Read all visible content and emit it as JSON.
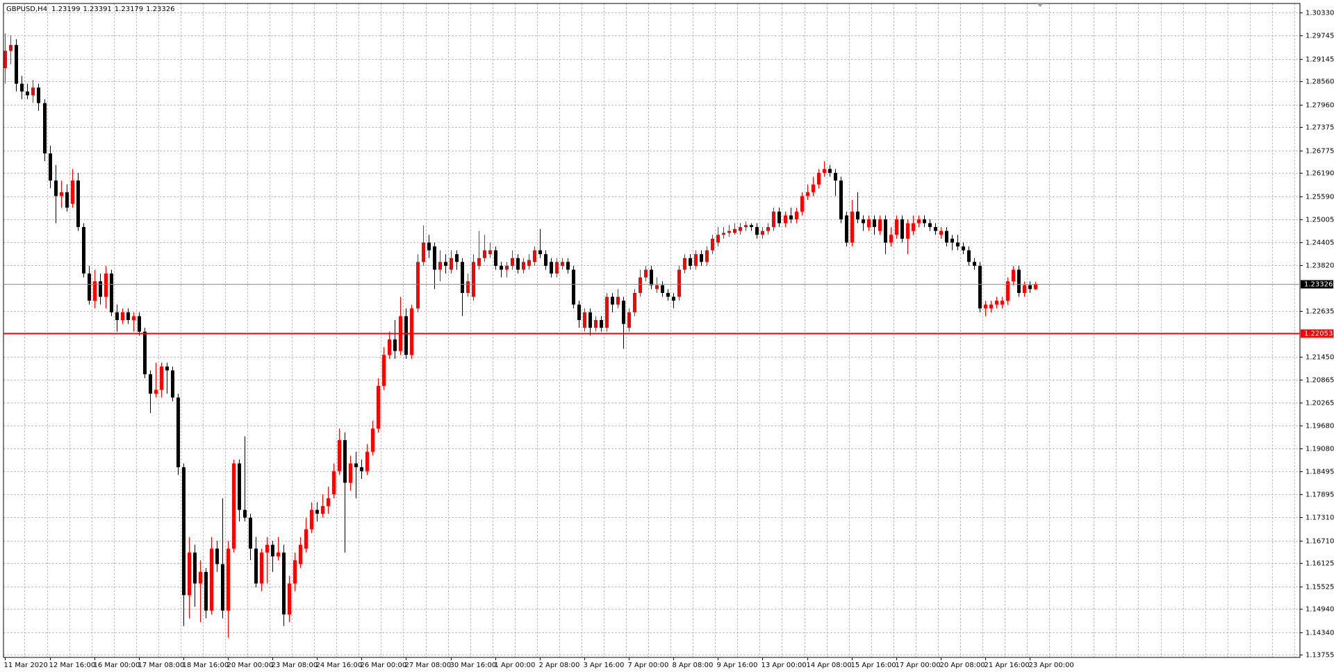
{
  "chart_data": {
    "type": "candlestick",
    "symbol": "GBPUSD,H4",
    "categories": [
      "11 Mar 2020",
      null,
      null,
      null,
      null,
      null,
      null,
      null,
      "12 Mar 16:00",
      null,
      null,
      null,
      null,
      null,
      null,
      null,
      "16 Mar 00:00",
      null,
      null,
      null,
      null,
      null,
      null,
      null,
      "17 Mar 08:00",
      null,
      null,
      null,
      null,
      null,
      null,
      null,
      "18 Mar 16:00",
      null,
      null,
      null,
      null,
      null,
      null,
      null,
      "20 Mar 00:00",
      null,
      null,
      null,
      null,
      null,
      null,
      null,
      "23 Mar 08:00",
      null,
      null,
      null,
      null,
      null,
      null,
      null,
      "24 Mar 16:00",
      null,
      null,
      null,
      null,
      null,
      null,
      null,
      "26 Mar 00:00",
      null,
      null,
      null,
      null,
      null,
      null,
      null,
      "27 Mar 08:00",
      null,
      null,
      null,
      null,
      null,
      null,
      null,
      "30 Mar 16:00",
      null,
      null,
      null,
      null,
      null,
      null,
      null,
      "1 Apr 00:00",
      null,
      null,
      null,
      null,
      null,
      null,
      null,
      "2 Apr 08:00",
      null,
      null,
      null,
      null,
      null,
      null,
      null,
      "3 Apr 16:00",
      null,
      null,
      null,
      null,
      null,
      null,
      null,
      "7 Apr 00:00",
      null,
      null,
      null,
      null,
      null,
      null,
      null,
      "8 Apr 08:00",
      null,
      null,
      null,
      null,
      null,
      null,
      null,
      "9 Apr 16:00",
      null,
      null,
      null,
      null,
      null,
      null,
      null,
      "13 Apr 00:00",
      null,
      null,
      null,
      null,
      null,
      null,
      null,
      "14 Apr 08:00",
      null,
      null,
      null,
      null,
      null,
      null,
      null,
      "15 Apr 16:00",
      null,
      null,
      null,
      null,
      null,
      null,
      null,
      "17 Apr 00:00",
      null,
      null,
      null,
      null,
      null,
      null,
      null,
      "20 Apr 08:00",
      null,
      null,
      null,
      null,
      null,
      null,
      null,
      "21 Apr 16:00",
      null,
      null,
      null,
      null,
      null,
      null,
      null,
      "23 Apr 00:00",
      null
    ],
    "open": [
      1.289,
      1.2935,
      1.295,
      1.285,
      1.283,
      1.282,
      1.284,
      1.28,
      1.267,
      1.26,
      1.256,
      1.257,
      1.254,
      1.26,
      1.248,
      1.236,
      1.229,
      1.234,
      1.23,
      1.236,
      1.226,
      1.224,
      1.226,
      1.224,
      1.225,
      1.221,
      1.21,
      1.205,
      1.206,
      1.212,
      1.211,
      1.204,
      1.186,
      1.153,
      1.164,
      1.156,
      1.159,
      1.149,
      1.165,
      1.161,
      1.149,
      1.165,
      1.187,
      1.175,
      1.173,
      1.165,
      1.156,
      1.164,
      1.166,
      1.163,
      1.164,
      1.148,
      1.156,
      1.161,
      1.165,
      1.17,
      1.175,
      1.174,
      1.176,
      1.179,
      1.185,
      1.193,
      1.182,
      1.187,
      1.186,
      1.185,
      1.19,
      1.196,
      1.207,
      1.215,
      1.219,
      1.216,
      1.225,
      1.215,
      1.227,
      1.239,
      1.244,
      1.243,
      1.237,
      1.239,
      1.237,
      1.241,
      1.239,
      1.231,
      1.23,
      1.238,
      1.24,
      1.241,
      1.242,
      1.238,
      1.237,
      1.238,
      1.24,
      1.237,
      1.238,
      1.239,
      1.242,
      1.241,
      1.239,
      1.236,
      1.238,
      1.239,
      1.237,
      1.228,
      1.222,
      1.226,
      1.222,
      1.224,
      1.222,
      1.23,
      1.228,
      1.229,
      1.222,
      1.226,
      1.231,
      1.235,
      1.237,
      1.232,
      1.233,
      1.231,
      1.23,
      1.23,
      1.237,
      1.24,
      1.238,
      1.241,
      1.239,
      1.242,
      1.244,
      1.246,
      1.2465,
      1.2465,
      1.247,
      1.248,
      1.2485,
      1.248,
      1.246,
      1.247,
      1.248,
      1.252,
      1.249,
      1.251,
      1.25,
      1.252,
      1.256,
      1.257,
      1.259,
      1.262,
      1.263,
      1.262,
      1.26,
      1.251,
      1.244,
      1.252,
      1.25,
      1.248,
      1.25,
      1.247,
      1.25,
      1.244,
      1.246,
      1.25,
      1.245,
      1.247,
      1.249,
      1.25,
      1.249,
      1.248,
      1.246,
      1.247,
      1.245,
      1.244,
      1.243,
      1.242,
      1.239,
      1.238,
      1.227,
      1.227,
      1.228,
      1.228,
      1.229,
      1.234,
      1.237,
      1.231,
      1.233,
      1.23199
    ],
    "high": [
      1.298,
      1.2975,
      1.2965,
      1.287,
      1.285,
      1.286,
      1.285,
      1.281,
      1.269,
      1.264,
      1.26,
      1.259,
      1.263,
      1.262,
      1.249,
      1.238,
      1.237,
      1.236,
      1.238,
      1.237,
      1.228,
      1.227,
      1.227,
      1.226,
      1.226,
      1.222,
      1.211,
      1.213,
      1.213,
      1.213,
      1.212,
      1.205,
      1.187,
      1.168,
      1.166,
      1.162,
      1.16,
      1.168,
      1.167,
      1.178,
      1.167,
      1.188,
      1.188,
      1.194,
      1.174,
      1.168,
      1.165,
      1.168,
      1.167,
      1.168,
      1.166,
      1.158,
      1.164,
      1.168,
      1.173,
      1.177,
      1.177,
      1.179,
      1.181,
      1.187,
      1.196,
      1.195,
      1.189,
      1.19,
      1.188,
      1.192,
      1.198,
      1.209,
      1.217,
      1.221,
      1.224,
      1.23,
      1.227,
      1.228,
      1.241,
      1.2484,
      1.246,
      1.244,
      1.242,
      1.241,
      1.242,
      1.242,
      1.24,
      1.236,
      1.241,
      1.247,
      1.246,
      1.244,
      1.243,
      1.239,
      1.239,
      1.242,
      1.241,
      1.24,
      1.241,
      1.243,
      1.2475,
      1.242,
      1.24,
      1.24,
      1.24,
      1.24,
      1.238,
      1.229,
      1.227,
      1.227,
      1.225,
      1.225,
      1.231,
      1.231,
      1.232,
      1.23,
      1.227,
      1.232,
      1.237,
      1.238,
      1.238,
      1.235,
      1.234,
      1.232,
      1.231,
      1.238,
      1.241,
      1.241,
      1.242,
      1.242,
      1.243,
      1.246,
      1.248,
      1.248,
      1.2485,
      1.249,
      1.249,
      1.2495,
      1.249,
      1.249,
      1.248,
      1.249,
      1.253,
      1.253,
      1.252,
      1.253,
      1.253,
      1.257,
      1.259,
      1.261,
      1.263,
      1.265,
      1.264,
      1.263,
      1.261,
      1.252,
      1.255,
      1.257,
      1.251,
      1.251,
      1.251,
      1.251,
      1.251,
      1.248,
      1.251,
      1.251,
      1.25,
      1.251,
      1.251,
      1.251,
      1.25,
      1.249,
      1.248,
      1.248,
      1.246,
      1.246,
      1.244,
      1.243,
      1.24,
      1.239,
      1.229,
      1.229,
      1.23,
      1.23,
      1.235,
      1.238,
      1.238,
      1.234,
      1.234,
      1.23391
    ],
    "low": [
      1.285,
      1.29,
      1.283,
      1.281,
      1.281,
      1.28,
      1.278,
      1.265,
      1.258,
      1.249,
      1.253,
      1.252,
      1.253,
      1.247,
      1.235,
      1.228,
      1.227,
      1.228,
      1.227,
      1.225,
      1.221,
      1.223,
      1.223,
      1.221,
      1.22,
      1.209,
      1.2,
      1.204,
      1.204,
      1.205,
      1.203,
      1.184,
      1.145,
      1.147,
      1.15,
      1.146,
      1.147,
      1.148,
      1.159,
      1.147,
      1.142,
      1.164,
      1.172,
      1.172,
      1.162,
      1.155,
      1.154,
      1.156,
      1.159,
      1.162,
      1.145,
      1.146,
      1.154,
      1.16,
      1.164,
      1.169,
      1.172,
      1.173,
      1.174,
      1.178,
      1.184,
      1.164,
      1.18,
      1.178,
      1.183,
      1.184,
      1.189,
      1.195,
      1.206,
      1.214,
      1.214,
      1.215,
      1.214,
      1.214,
      1.226,
      1.238,
      1.24,
      1.232,
      1.234,
      1.236,
      1.236,
      1.237,
      1.225,
      1.23,
      1.229,
      1.237,
      1.239,
      1.24,
      1.237,
      1.235,
      1.235,
      1.237,
      1.236,
      1.236,
      1.237,
      1.238,
      1.24,
      1.237,
      1.235,
      1.235,
      1.237,
      1.236,
      1.227,
      1.222,
      1.221,
      1.22,
      1.221,
      1.221,
      1.221,
      1.226,
      1.227,
      1.2166,
      1.221,
      1.225,
      1.23,
      1.234,
      1.232,
      1.231,
      1.23,
      1.229,
      1.227,
      1.229,
      1.236,
      1.237,
      1.237,
      1.238,
      1.238,
      1.241,
      1.243,
      1.245,
      1.2455,
      1.246,
      1.246,
      1.247,
      1.247,
      1.245,
      1.245,
      1.246,
      1.247,
      1.248,
      1.248,
      1.249,
      1.249,
      1.251,
      1.255,
      1.256,
      1.258,
      1.261,
      1.261,
      1.256,
      1.249,
      1.243,
      1.243,
      1.249,
      1.247,
      1.247,
      1.246,
      1.246,
      1.241,
      1.243,
      1.245,
      1.244,
      1.241,
      1.246,
      1.248,
      1.248,
      1.247,
      1.246,
      1.245,
      1.243,
      1.242,
      1.242,
      1.241,
      1.238,
      1.237,
      1.226,
      1.225,
      1.226,
      1.227,
      1.227,
      1.228,
      1.233,
      1.23,
      1.23,
      1.231,
      1.23179
    ],
    "close": [
      1.2935,
      1.295,
      1.285,
      1.283,
      1.282,
      1.284,
      1.28,
      1.267,
      1.26,
      1.256,
      1.257,
      1.253,
      1.26,
      1.248,
      1.236,
      1.229,
      1.234,
      1.23,
      1.236,
      1.226,
      1.224,
      1.226,
      1.224,
      1.225,
      1.221,
      1.21,
      1.205,
      1.206,
      1.212,
      1.211,
      1.204,
      1.186,
      1.153,
      1.164,
      1.156,
      1.159,
      1.149,
      1.165,
      1.161,
      1.149,
      1.165,
      1.187,
      1.175,
      1.173,
      1.165,
      1.156,
      1.164,
      1.166,
      1.163,
      1.164,
      1.148,
      1.156,
      1.162,
      1.166,
      1.17,
      1.175,
      1.174,
      1.176,
      1.178,
      1.185,
      1.193,
      1.182,
      1.187,
      1.186,
      1.185,
      1.19,
      1.196,
      1.207,
      1.215,
      1.219,
      1.216,
      1.225,
      1.215,
      1.227,
      1.239,
      1.244,
      1.242,
      1.237,
      1.239,
      1.238,
      1.24,
      1.239,
      1.231,
      1.234,
      1.239,
      1.24,
      1.242,
      1.242,
      1.238,
      1.237,
      1.238,
      1.24,
      1.237,
      1.239,
      1.2395,
      1.242,
      1.241,
      1.238,
      1.236,
      1.239,
      1.239,
      1.237,
      1.228,
      1.224,
      1.226,
      1.222,
      1.224,
      1.222,
      1.23,
      1.228,
      1.23,
      1.223,
      1.226,
      1.231,
      1.235,
      1.237,
      1.233,
      1.233,
      1.231,
      1.23,
      1.229,
      1.237,
      1.24,
      1.238,
      1.241,
      1.239,
      1.242,
      1.245,
      1.246,
      1.2465,
      1.247,
      1.2475,
      1.248,
      1.2485,
      1.248,
      1.246,
      1.247,
      1.248,
      1.252,
      1.249,
      1.251,
      1.25,
      1.252,
      1.256,
      1.257,
      1.259,
      1.262,
      1.263,
      1.262,
      1.26,
      1.25,
      1.244,
      1.252,
      1.25,
      1.249,
      1.25,
      1.248,
      1.25,
      1.244,
      1.246,
      1.25,
      1.245,
      1.249,
      1.249,
      1.25,
      1.249,
      1.248,
      1.247,
      1.247,
      1.244,
      1.244,
      1.243,
      1.242,
      1.239,
      1.238,
      1.227,
      1.228,
      1.228,
      1.229,
      1.229,
      1.234,
      1.237,
      1.231,
      1.233,
      1.232,
      1.23326
    ],
    "up_color": "#ff0000",
    "down_color": "#000000",
    "ylim": [
      1.13692,
      1.30571
    ],
    "yticks": [
      {
        "value": 1.3033,
        "label": "1.30330"
      },
      1.29745,
      1.29145,
      {
        "value": 1.2856,
        "label": "1.28560"
      },
      {
        "value": 1.2796,
        "label": "1.27960"
      },
      1.27375,
      1.26775,
      {
        "value": 1.2619,
        "label": "1.26190"
      },
      {
        "value": 1.2559,
        "label": "1.25590"
      },
      1.25005,
      1.24405,
      {
        "value": 1.2382,
        "label": "1.23820"
      },
      1.22635,
      {
        "value": 1.2145,
        "label": "1.21450"
      },
      1.20865,
      1.20265,
      {
        "value": 1.1968,
        "label": "1.19680"
      },
      {
        "value": 1.1908,
        "label": "1.19080"
      },
      1.18495,
      1.17895,
      {
        "value": 1.1731,
        "label": "1.17310"
      },
      {
        "value": 1.1671,
        "label": "1.16710"
      },
      1.16125,
      1.15525,
      {
        "value": 1.1494,
        "label": "1.14940"
      },
      {
        "value": 1.1434,
        "label": "1.14340"
      },
      1.13755
    ],
    "grid": true,
    "levels": [
      {
        "value": 1.22053,
        "color": "#ff0000"
      }
    ]
  }
}
